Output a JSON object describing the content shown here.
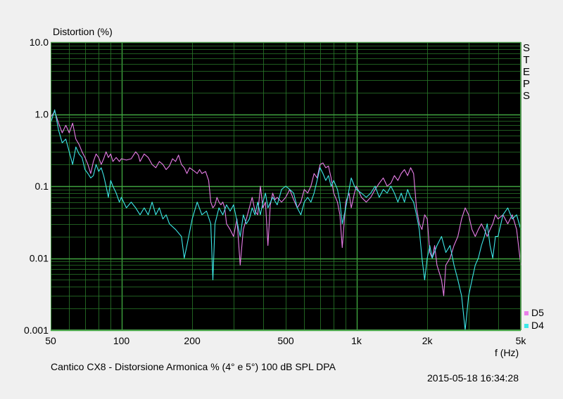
{
  "chart_data": {
    "type": "line",
    "ylabel": "Distortion (%)",
    "xlabel": "f (Hz)",
    "xscale": "log",
    "yscale": "log",
    "xlim": [
      50,
      5000
    ],
    "ylim": [
      0.001,
      10
    ],
    "xticks": [
      {
        "value": 50,
        "label": "50"
      },
      {
        "value": 100,
        "label": "100"
      },
      {
        "value": 200,
        "label": "200"
      },
      {
        "value": 500,
        "label": "500"
      },
      {
        "value": 1000,
        "label": "1k"
      },
      {
        "value": 2000,
        "label": "2k"
      },
      {
        "value": 5000,
        "label": "5k"
      }
    ],
    "yticks": [
      {
        "value": 10,
        "label": "10.0"
      },
      {
        "value": 1,
        "label": "1.0"
      },
      {
        "value": 0.1,
        "label": "0.1"
      },
      {
        "value": 0.01,
        "label": "0.01"
      },
      {
        "value": 0.001,
        "label": "0.001"
      }
    ],
    "grid": true,
    "background": "#000000",
    "grid_color": "#2a7a2a",
    "legend_position": "bottom-right",
    "side_label": "STEPS",
    "caption": "Cantico CX8 - Distorsione Armonica % (4° e 5°) 100 dB SPL     DPA",
    "timestamp": "2015-05-18 16:34:28",
    "series": [
      {
        "name": "D5",
        "color": "#e87ee8",
        "points": [
          [
            50,
            0.9
          ],
          [
            52,
            1.1
          ],
          [
            54,
            0.75
          ],
          [
            56,
            0.55
          ],
          [
            58,
            0.7
          ],
          [
            60,
            0.55
          ],
          [
            62,
            0.75
          ],
          [
            64,
            0.45
          ],
          [
            66,
            0.38
          ],
          [
            68,
            0.3
          ],
          [
            70,
            0.25
          ],
          [
            72,
            0.2
          ],
          [
            74,
            0.15
          ],
          [
            76,
            0.22
          ],
          [
            78,
            0.28
          ],
          [
            80,
            0.25
          ],
          [
            82,
            0.2
          ],
          [
            84,
            0.24
          ],
          [
            86,
            0.3
          ],
          [
            88,
            0.25
          ],
          [
            90,
            0.28
          ],
          [
            92,
            0.22
          ],
          [
            95,
            0.25
          ],
          [
            98,
            0.22
          ],
          [
            100,
            0.24
          ],
          [
            105,
            0.23
          ],
          [
            110,
            0.24
          ],
          [
            115,
            0.3
          ],
          [
            118,
            0.27
          ],
          [
            120,
            0.22
          ],
          [
            125,
            0.28
          ],
          [
            130,
            0.25
          ],
          [
            135,
            0.2
          ],
          [
            140,
            0.18
          ],
          [
            145,
            0.22
          ],
          [
            150,
            0.2
          ],
          [
            155,
            0.17
          ],
          [
            160,
            0.19
          ],
          [
            165,
            0.24
          ],
          [
            170,
            0.22
          ],
          [
            175,
            0.27
          ],
          [
            180,
            0.2
          ],
          [
            185,
            0.18
          ],
          [
            190,
            0.15
          ],
          [
            195,
            0.18
          ],
          [
            200,
            0.17
          ],
          [
            205,
            0.16
          ],
          [
            210,
            0.15
          ],
          [
            215,
            0.17
          ],
          [
            220,
            0.15
          ],
          [
            228,
            0.16
          ],
          [
            235,
            0.12
          ],
          [
            240,
            0.06
          ],
          [
            245,
            0.05
          ],
          [
            250,
            0.055
          ],
          [
            255,
            0.07
          ],
          [
            260,
            0.06
          ],
          [
            265,
            0.055
          ],
          [
            270,
            0.06
          ],
          [
            275,
            0.05
          ],
          [
            280,
            0.03
          ],
          [
            290,
            0.025
          ],
          [
            300,
            0.02
          ],
          [
            310,
            0.035
          ],
          [
            320,
            0.008
          ],
          [
            330,
            0.025
          ],
          [
            340,
            0.035
          ],
          [
            350,
            0.05
          ],
          [
            360,
            0.07
          ],
          [
            370,
            0.045
          ],
          [
            380,
            0.04
          ],
          [
            390,
            0.1
          ],
          [
            400,
            0.05
          ],
          [
            410,
            0.06
          ],
          [
            420,
            0.015
          ],
          [
            430,
            0.055
          ],
          [
            440,
            0.08
          ],
          [
            450,
            0.065
          ],
          [
            460,
            0.07
          ],
          [
            480,
            0.06
          ],
          [
            500,
            0.07
          ],
          [
            520,
            0.09
          ],
          [
            540,
            0.065
          ],
          [
            560,
            0.05
          ],
          [
            580,
            0.06
          ],
          [
            600,
            0.09
          ],
          [
            620,
            0.08
          ],
          [
            640,
            0.1
          ],
          [
            660,
            0.15
          ],
          [
            680,
            0.13
          ],
          [
            700,
            0.2
          ],
          [
            720,
            0.21
          ],
          [
            740,
            0.18
          ],
          [
            760,
            0.19
          ],
          [
            780,
            0.13
          ],
          [
            800,
            0.08
          ],
          [
            830,
            0.06
          ],
          [
            850,
            0.04
          ],
          [
            870,
            0.014
          ],
          [
            900,
            0.06
          ],
          [
            930,
            0.08
          ],
          [
            950,
            0.05
          ],
          [
            980,
            0.08
          ],
          [
            1000,
            0.1
          ],
          [
            1050,
            0.07
          ],
          [
            1100,
            0.06
          ],
          [
            1150,
            0.07
          ],
          [
            1200,
            0.09
          ],
          [
            1250,
            0.11
          ],
          [
            1300,
            0.13
          ],
          [
            1350,
            0.1
          ],
          [
            1400,
            0.11
          ],
          [
            1450,
            0.14
          ],
          [
            1500,
            0.12
          ],
          [
            1550,
            0.15
          ],
          [
            1600,
            0.17
          ],
          [
            1650,
            0.14
          ],
          [
            1700,
            0.18
          ],
          [
            1750,
            0.15
          ],
          [
            1800,
            0.05
          ],
          [
            1850,
            0.03
          ],
          [
            1900,
            0.025
          ],
          [
            1950,
            0.04
          ],
          [
            2000,
            0.035
          ],
          [
            2050,
            0.012
          ],
          [
            2100,
            0.01
          ],
          [
            2150,
            0.015
          ],
          [
            2200,
            0.008
          ],
          [
            2300,
            0.005
          ],
          [
            2350,
            0.003
          ],
          [
            2400,
            0.008
          ],
          [
            2500,
            0.01
          ],
          [
            2600,
            0.015
          ],
          [
            2700,
            0.02
          ],
          [
            2800,
            0.035
          ],
          [
            2900,
            0.05
          ],
          [
            3000,
            0.04
          ],
          [
            3100,
            0.025
          ],
          [
            3200,
            0.02
          ],
          [
            3300,
            0.025
          ],
          [
            3400,
            0.03
          ],
          [
            3500,
            0.025
          ],
          [
            3600,
            0.02
          ],
          [
            3700,
            0.025
          ],
          [
            3800,
            0.03
          ],
          [
            3900,
            0.04
          ],
          [
            4000,
            0.035
          ],
          [
            4200,
            0.04
          ],
          [
            4400,
            0.03
          ],
          [
            4600,
            0.04
          ],
          [
            4800,
            0.025
          ],
          [
            5000,
            0.008
          ]
        ]
      },
      {
        "name": "D4",
        "color": "#3de8e8",
        "points": [
          [
            50,
            0.75
          ],
          [
            52,
            1.15
          ],
          [
            54,
            0.6
          ],
          [
            56,
            0.4
          ],
          [
            58,
            0.45
          ],
          [
            60,
            0.3
          ],
          [
            62,
            0.2
          ],
          [
            64,
            0.35
          ],
          [
            66,
            0.28
          ],
          [
            68,
            0.25
          ],
          [
            70,
            0.17
          ],
          [
            72,
            0.15
          ],
          [
            74,
            0.13
          ],
          [
            76,
            0.14
          ],
          [
            78,
            0.2
          ],
          [
            80,
            0.16
          ],
          [
            82,
            0.18
          ],
          [
            84,
            0.14
          ],
          [
            86,
            0.1
          ],
          [
            88,
            0.07
          ],
          [
            90,
            0.12
          ],
          [
            92,
            0.1
          ],
          [
            95,
            0.08
          ],
          [
            98,
            0.06
          ],
          [
            100,
            0.07
          ],
          [
            105,
            0.05
          ],
          [
            110,
            0.06
          ],
          [
            115,
            0.05
          ],
          [
            120,
            0.04
          ],
          [
            125,
            0.05
          ],
          [
            130,
            0.04
          ],
          [
            135,
            0.06
          ],
          [
            140,
            0.04
          ],
          [
            145,
            0.05
          ],
          [
            150,
            0.035
          ],
          [
            155,
            0.04
          ],
          [
            160,
            0.03
          ],
          [
            170,
            0.025
          ],
          [
            180,
            0.02
          ],
          [
            185,
            0.01
          ],
          [
            190,
            0.015
          ],
          [
            200,
            0.035
          ],
          [
            210,
            0.06
          ],
          [
            220,
            0.04
          ],
          [
            230,
            0.045
          ],
          [
            240,
            0.03
          ],
          [
            245,
            0.005
          ],
          [
            250,
            0.03
          ],
          [
            260,
            0.05
          ],
          [
            270,
            0.04
          ],
          [
            280,
            0.055
          ],
          [
            290,
            0.045
          ],
          [
            300,
            0.055
          ],
          [
            320,
            0.02
          ],
          [
            330,
            0.04
          ],
          [
            340,
            0.03
          ],
          [
            350,
            0.035
          ],
          [
            360,
            0.05
          ],
          [
            370,
            0.04
          ],
          [
            380,
            0.06
          ],
          [
            390,
            0.04
          ],
          [
            400,
            0.06
          ],
          [
            410,
            0.08
          ],
          [
            420,
            0.05
          ],
          [
            440,
            0.07
          ],
          [
            460,
            0.055
          ],
          [
            480,
            0.09
          ],
          [
            500,
            0.1
          ],
          [
            520,
            0.09
          ],
          [
            540,
            0.08
          ],
          [
            560,
            0.05
          ],
          [
            580,
            0.04
          ],
          [
            600,
            0.06
          ],
          [
            620,
            0.07
          ],
          [
            640,
            0.06
          ],
          [
            660,
            0.08
          ],
          [
            680,
            0.12
          ],
          [
            700,
            0.18
          ],
          [
            720,
            0.15
          ],
          [
            740,
            0.12
          ],
          [
            760,
            0.14
          ],
          [
            780,
            0.1
          ],
          [
            800,
            0.12
          ],
          [
            830,
            0.09
          ],
          [
            850,
            0.06
          ],
          [
            870,
            0.03
          ],
          [
            900,
            0.05
          ],
          [
            930,
            0.09
          ],
          [
            950,
            0.13
          ],
          [
            980,
            0.1
          ],
          [
            1000,
            0.09
          ],
          [
            1050,
            0.08
          ],
          [
            1100,
            0.07
          ],
          [
            1150,
            0.08
          ],
          [
            1200,
            0.1
          ],
          [
            1250,
            0.07
          ],
          [
            1300,
            0.09
          ],
          [
            1350,
            0.08
          ],
          [
            1400,
            0.1
          ],
          [
            1450,
            0.08
          ],
          [
            1500,
            0.06
          ],
          [
            1550,
            0.08
          ],
          [
            1600,
            0.06
          ],
          [
            1650,
            0.09
          ],
          [
            1700,
            0.07
          ],
          [
            1750,
            0.06
          ],
          [
            1800,
            0.04
          ],
          [
            1850,
            0.025
          ],
          [
            1900,
            0.01
          ],
          [
            1950,
            0.005
          ],
          [
            2000,
            0.01
          ],
          [
            2050,
            0.015
          ],
          [
            2100,
            0.01
          ],
          [
            2200,
            0.015
          ],
          [
            2300,
            0.02
          ],
          [
            2400,
            0.012
          ],
          [
            2500,
            0.015
          ],
          [
            2600,
            0.008
          ],
          [
            2700,
            0.005
          ],
          [
            2800,
            0.003
          ],
          [
            2900,
            0.001
          ],
          [
            3000,
            0.003
          ],
          [
            3100,
            0.005
          ],
          [
            3200,
            0.008
          ],
          [
            3300,
            0.01
          ],
          [
            3400,
            0.015
          ],
          [
            3500,
            0.02
          ],
          [
            3600,
            0.03
          ],
          [
            3700,
            0.015
          ],
          [
            3800,
            0.01
          ],
          [
            3900,
            0.02
          ],
          [
            4000,
            0.02
          ],
          [
            4200,
            0.04
          ],
          [
            4400,
            0.05
          ],
          [
            4600,
            0.035
          ],
          [
            4800,
            0.04
          ],
          [
            5000,
            0.025
          ]
        ]
      }
    ]
  }
}
